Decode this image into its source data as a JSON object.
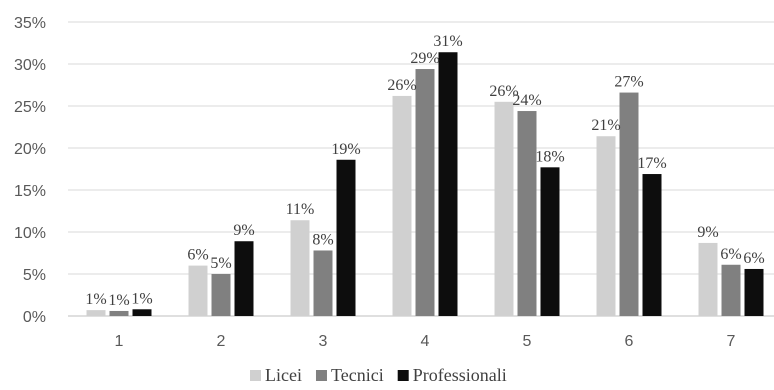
{
  "chart_data": {
    "type": "bar",
    "categories": [
      "1",
      "2",
      "3",
      "4",
      "5",
      "6",
      "7"
    ],
    "series": [
      {
        "name": "Licei",
        "color": "#d0d0d0",
        "values": [
          0.7,
          6.0,
          11.4,
          26.2,
          25.5,
          21.4,
          8.7
        ],
        "labels": [
          "1%",
          "6%",
          "11%",
          "26%",
          "26%",
          "21%",
          "9%"
        ]
      },
      {
        "name": "Tecnici",
        "color": "#808080",
        "values": [
          0.6,
          5.0,
          7.8,
          29.4,
          24.4,
          26.6,
          6.1
        ],
        "labels": [
          "1%",
          "5%",
          "8%",
          "29%",
          "24%",
          "27%",
          "6%"
        ]
      },
      {
        "name": "Professionali",
        "color": "#0d0d0d",
        "values": [
          0.8,
          8.9,
          18.6,
          31.4,
          17.7,
          16.9,
          5.6
        ],
        "labels": [
          "1%",
          "9%",
          "19%",
          "31%",
          "18%",
          "17%",
          "6%"
        ]
      }
    ],
    "y_ticks": [
      "0%",
      "5%",
      "10%",
      "15%",
      "20%",
      "25%",
      "30%",
      "35%"
    ],
    "y_tick_values": [
      0,
      5,
      10,
      15,
      20,
      25,
      30,
      35
    ],
    "ylim": [
      0,
      35
    ],
    "grid": true,
    "legend_position": "bottom",
    "title": "",
    "xlabel": "",
    "ylabel": ""
  }
}
